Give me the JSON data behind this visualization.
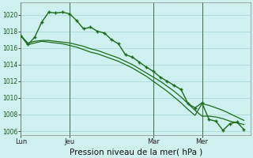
{
  "bg_color": "#cef0ee",
  "grid_color": "#aad8d5",
  "line_color": "#1a6b1a",
  "xlabel": "Pression niveau de la mer( hPa )",
  "xlabel_fontsize": 7.5,
  "ylim": [
    1005.5,
    1021.5
  ],
  "yticks": [
    1006,
    1008,
    1010,
    1012,
    1014,
    1016,
    1018,
    1020
  ],
  "xtick_labels": [
    "Lun",
    "Jeu",
    "Mar",
    "Mer"
  ],
  "xtick_positions": [
    0,
    7,
    19,
    26
  ],
  "vline_positions": [
    0,
    7,
    19,
    26
  ],
  "xlim": [
    0,
    33
  ],
  "series1_x": [
    0,
    1,
    2,
    3,
    4,
    5,
    6,
    7,
    8,
    9,
    10,
    11,
    12,
    13,
    14,
    15,
    16,
    17,
    18,
    19,
    20,
    21,
    22,
    23,
    24,
    25,
    26,
    27,
    28,
    29,
    30,
    31,
    32
  ],
  "series1_y": [
    1017.5,
    1016.4,
    1017.3,
    1019.1,
    1020.3,
    1020.2,
    1020.3,
    1020.1,
    1019.3,
    1018.3,
    1018.5,
    1018.0,
    1017.8,
    1017.0,
    1016.5,
    1015.2,
    1014.9,
    1014.3,
    1013.7,
    1013.2,
    1012.5,
    1012.0,
    1011.5,
    1011.0,
    1009.3,
    1008.8,
    1009.4,
    1007.4,
    1007.2,
    1006.1,
    1006.9,
    1007.1,
    1006.2
  ],
  "series2_x": [
    0,
    1,
    2,
    3,
    4,
    5,
    6,
    7,
    8,
    9,
    10,
    11,
    12,
    13,
    14,
    15,
    16,
    17,
    18,
    19,
    20,
    21,
    22,
    23,
    24,
    25,
    26,
    27,
    28,
    29,
    30,
    31,
    32
  ],
  "series2_y": [
    1017.5,
    1016.6,
    1016.8,
    1016.9,
    1016.9,
    1016.8,
    1016.7,
    1016.6,
    1016.4,
    1016.2,
    1015.9,
    1015.7,
    1015.4,
    1015.1,
    1014.8,
    1014.4,
    1014.0,
    1013.5,
    1013.0,
    1012.5,
    1012.0,
    1011.4,
    1010.8,
    1010.1,
    1009.3,
    1008.5,
    1007.8,
    1007.8,
    1007.7,
    1007.5,
    1007.2,
    1007.0,
    1006.8
  ],
  "series3_x": [
    0,
    1,
    2,
    3,
    4,
    5,
    6,
    7,
    8,
    9,
    10,
    11,
    12,
    13,
    14,
    15,
    16,
    17,
    18,
    19,
    20,
    21,
    22,
    23,
    24,
    25,
    26,
    27,
    28,
    29,
    30,
    31,
    32
  ],
  "series3_y": [
    1017.5,
    1016.4,
    1016.6,
    1016.8,
    1016.7,
    1016.6,
    1016.5,
    1016.3,
    1016.1,
    1015.8,
    1015.5,
    1015.3,
    1015.0,
    1014.7,
    1014.4,
    1014.0,
    1013.6,
    1013.1,
    1012.6,
    1012.0,
    1011.4,
    1010.8,
    1010.1,
    1009.4,
    1008.6,
    1007.9,
    1009.3,
    1009.1,
    1008.8,
    1008.5,
    1008.1,
    1007.7,
    1007.3
  ]
}
